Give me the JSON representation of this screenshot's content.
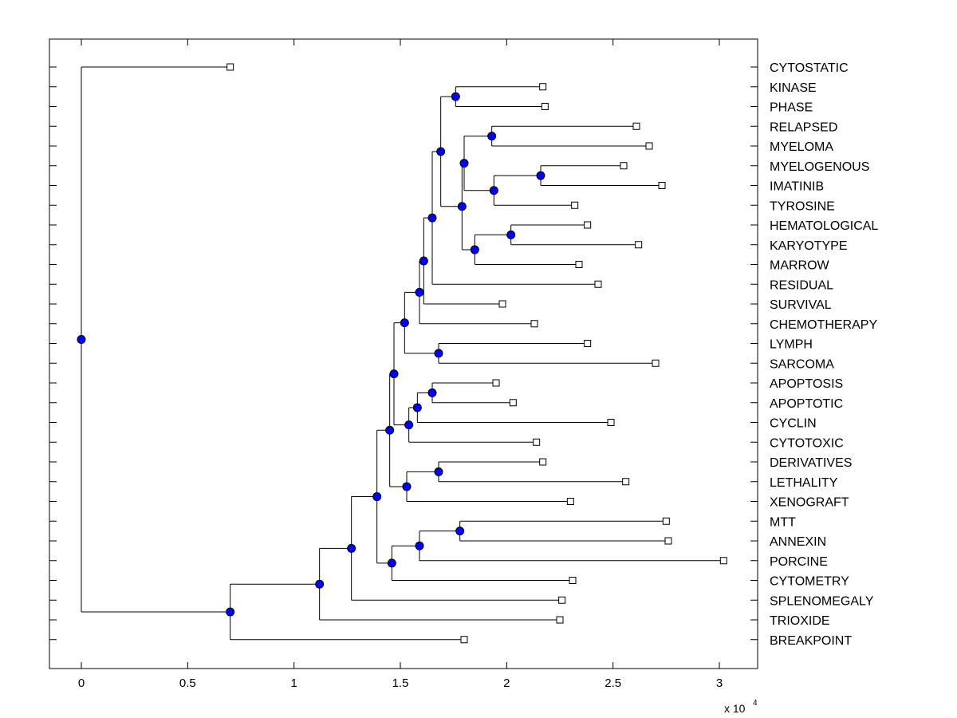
{
  "chart_data": {
    "type": "dendrogram",
    "title": "",
    "xlabel": "",
    "ylabel": "",
    "x_multiplier_label": "x 10",
    "x_multiplier_exponent": "4",
    "xlim": [
      -0.15,
      3.17
    ],
    "xticks": [
      {
        "value": 0,
        "label": "0"
      },
      {
        "value": 0.5,
        "label": "0.5"
      },
      {
        "value": 1,
        "label": "1"
      },
      {
        "value": 1.5,
        "label": "1.5"
      },
      {
        "value": 2,
        "label": "2"
      },
      {
        "value": 2.5,
        "label": "2.5"
      },
      {
        "value": 3,
        "label": "3"
      }
    ],
    "grid": false,
    "node_color": "#0000ff",
    "leaves": [
      {
        "label": "CYTOSTATIC",
        "x": 0.7
      },
      {
        "label": "KINASE",
        "x": 2.17
      },
      {
        "label": "PHASE",
        "x": 2.18
      },
      {
        "label": "RELAPSED",
        "x": 2.61
      },
      {
        "label": "MYELOMA",
        "x": 2.67
      },
      {
        "label": "MYELOGENOUS",
        "x": 2.55
      },
      {
        "label": "IMATINIB",
        "x": 2.73
      },
      {
        "label": "TYROSINE",
        "x": 2.32
      },
      {
        "label": "HEMATOLOGICAL",
        "x": 2.38
      },
      {
        "label": "KARYOTYPE",
        "x": 2.62
      },
      {
        "label": "MARROW",
        "x": 2.34
      },
      {
        "label": "RESIDUAL",
        "x": 2.43
      },
      {
        "label": "SURVIVAL",
        "x": 1.98
      },
      {
        "label": "CHEMOTHERAPY",
        "x": 2.13
      },
      {
        "label": "LYMPH",
        "x": 2.38
      },
      {
        "label": "SARCOMA",
        "x": 2.7
      },
      {
        "label": "APOPTOSIS",
        "x": 1.95
      },
      {
        "label": "APOPTOTIC",
        "x": 2.03
      },
      {
        "label": "CYCLIN",
        "x": 2.49
      },
      {
        "label": "CYTOTOXIC",
        "x": 2.14
      },
      {
        "label": "DERIVATIVES",
        "x": 2.17
      },
      {
        "label": "LETHALITY",
        "x": 2.56
      },
      {
        "label": "XENOGRAFT",
        "x": 2.3
      },
      {
        "label": "MTT",
        "x": 2.75
      },
      {
        "label": "ANNEXIN",
        "x": 2.76
      },
      {
        "label": "PORCINE",
        "x": 3.02
      },
      {
        "label": "CYTOMETRY",
        "x": 2.31
      },
      {
        "label": "SPLENOMEGALY",
        "x": 2.26
      },
      {
        "label": "TRIOXIDE",
        "x": 2.25
      },
      {
        "label": "BREAKPOINT",
        "x": 1.8
      }
    ],
    "nodes": [
      {
        "id": "N1",
        "x": 1.76,
        "children": [
          "L1",
          "L2"
        ]
      },
      {
        "id": "N2",
        "x": 1.93,
        "children": [
          "L3",
          "L4"
        ]
      },
      {
        "id": "N3",
        "x": 2.16,
        "children": [
          "L5",
          "L6"
        ]
      },
      {
        "id": "N4",
        "x": 1.94,
        "children": [
          "N3",
          "L7"
        ]
      },
      {
        "id": "N5",
        "x": 1.8,
        "children": [
          "N2",
          "N4"
        ]
      },
      {
        "id": "N6",
        "x": 2.02,
        "children": [
          "L8",
          "L9"
        ]
      },
      {
        "id": "N7",
        "x": 1.85,
        "children": [
          "N6",
          "L10"
        ]
      },
      {
        "id": "N8",
        "x": 1.79,
        "children": [
          "N5",
          "N7"
        ]
      },
      {
        "id": "N9",
        "x": 1.69,
        "children": [
          "N1",
          "N8"
        ]
      },
      {
        "id": "N10",
        "x": 1.65,
        "children": [
          "N9",
          "L11"
        ]
      },
      {
        "id": "N11",
        "x": 1.61,
        "children": [
          "N10",
          "L12"
        ]
      },
      {
        "id": "N12",
        "x": 1.59,
        "children": [
          "N11",
          "L13"
        ]
      },
      {
        "id": "N13",
        "x": 1.68,
        "children": [
          "L14",
          "L15"
        ]
      },
      {
        "id": "N14",
        "x": 1.52,
        "children": [
          "N12",
          "N13"
        ]
      },
      {
        "id": "N15",
        "x": 1.65,
        "children": [
          "L16",
          "L17"
        ]
      },
      {
        "id": "N16",
        "x": 1.58,
        "children": [
          "N15",
          "L18"
        ]
      },
      {
        "id": "N17",
        "x": 1.54,
        "children": [
          "N16",
          "L19"
        ]
      },
      {
        "id": "N18",
        "x": 1.47,
        "children": [
          "N14",
          "N17"
        ]
      },
      {
        "id": "N19",
        "x": 1.68,
        "children": [
          "L20",
          "L21"
        ]
      },
      {
        "id": "N20",
        "x": 1.53,
        "children": [
          "N19",
          "L22"
        ]
      },
      {
        "id": "N21",
        "x": 1.45,
        "children": [
          "N18",
          "N20"
        ]
      },
      {
        "id": "N22",
        "x": 1.78,
        "children": [
          "L23",
          "L24"
        ]
      },
      {
        "id": "N23",
        "x": 1.59,
        "children": [
          "N22",
          "L25"
        ]
      },
      {
        "id": "N24",
        "x": 1.46,
        "children": [
          "N23",
          "L26"
        ]
      },
      {
        "id": "N25",
        "x": 1.39,
        "children": [
          "N21",
          "N24"
        ]
      },
      {
        "id": "N26",
        "x": 1.27,
        "children": [
          "N25",
          "L27"
        ]
      },
      {
        "id": "N27",
        "x": 1.12,
        "children": [
          "N26",
          "L28"
        ]
      },
      {
        "id": "N28",
        "x": 0.7,
        "children": [
          "N27",
          "L29"
        ]
      },
      {
        "id": "N29",
        "x": 0.0,
        "children": [
          "L0",
          "N28"
        ]
      }
    ]
  }
}
